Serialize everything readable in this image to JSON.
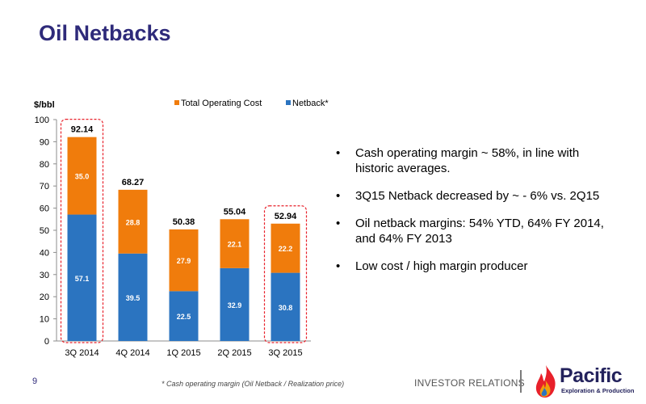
{
  "slide": {
    "title": "Oil Netbacks",
    "page_number": "9",
    "footnote": "* Cash operating margin (Oil Netback / Realization price)",
    "investor_relations": "INVESTOR RELATIONS",
    "logo": {
      "name": "Pacific",
      "tagline": "Exploration & Production"
    }
  },
  "bullets": [
    "Cash operating margin ~ 58%, in line with historic averages.",
    "3Q15 Netback decreased by ~ - 6% vs. 2Q15",
    "Oil netback margins: 54% YTD, 64% FY 2014, and 64% FY 2013",
    "Low cost / high margin producer"
  ],
  "colors": {
    "netback": "#2b74c0",
    "operating_cost": "#f07c0c",
    "highlight_box": "#e8202a",
    "title": "#2e2a7a"
  },
  "chart_data": {
    "type": "bar",
    "stacked": true,
    "ylabel": "$/bbl",
    "ylim": [
      0,
      100
    ],
    "yticks": [
      0,
      10,
      20,
      30,
      40,
      50,
      60,
      70,
      80,
      90,
      100
    ],
    "grid": false,
    "legend_position": "top",
    "categories": [
      "3Q 2014",
      "4Q 2014",
      "1Q 2015",
      "2Q 2015",
      "3Q 2015"
    ],
    "series": [
      {
        "name": "Netback*",
        "color": "#2b74c0",
        "values": [
          57.1,
          39.5,
          22.5,
          32.9,
          30.8
        ]
      },
      {
        "name": "Total Operating Cost",
        "color": "#f07c0c",
        "values": [
          35.0,
          28.8,
          27.9,
          22.1,
          22.2
        ]
      }
    ],
    "legend_order": [
      "Total Operating Cost",
      "Netback*"
    ],
    "totals": [
      92.14,
      68.27,
      50.38,
      55.04,
      52.94
    ],
    "highlighted_categories": [
      "3Q 2014",
      "3Q 2015"
    ]
  }
}
